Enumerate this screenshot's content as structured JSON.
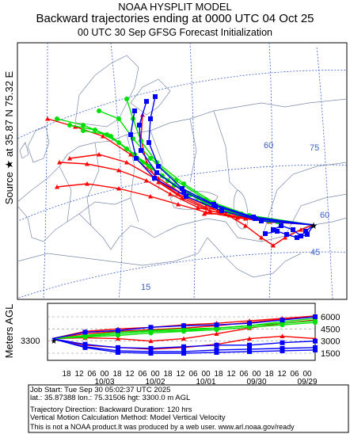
{
  "header": {
    "line1": "NOAA HYSPLIT MODEL",
    "line2": "Backward trajectories ending at 0000 UTC 04 Oct 25",
    "line3": "00 UTC 30 Sep    GFSG  Forecast Initialization"
  },
  "side_label": "Source ★  at   35.87 N   75.32 E",
  "map": {
    "source": {
      "lat": 35.87,
      "lon": 75.32
    },
    "grid_labels": [
      "60",
      "75",
      "60",
      "45",
      "15"
    ]
  },
  "vertical": {
    "axis_label": "Meters AGL",
    "source_height_label": "3300",
    "right_ticks": [
      "6000",
      "4500",
      "3000",
      "1500"
    ],
    "hour_ticks": [
      "18",
      "12",
      "06",
      "00",
      "18",
      "12",
      "06",
      "00",
      "18",
      "12",
      "06",
      "00",
      "18",
      "12",
      "06",
      "00",
      "18",
      "12",
      "06",
      "00"
    ],
    "date_ticks": [
      "10/03",
      "10/02",
      "10/01",
      "09/30",
      "09/29"
    ]
  },
  "info": {
    "line1": "Job Start: Tue Sep 30 05:02:37 UTC 2025",
    "line2": "lat.: 35.87388   lon.: 75.31506    hgt: 3300.0 m AGL",
    "line3": "Trajectory Direction: Backward      Duration: 120 hrs",
    "line4": "Vertical Motion Calculation Method: Model Vertical Velocity",
    "line5": "This is not a NOAA product.It was produced by a web user. www.arl.noaa.gov/ready"
  },
  "colors": {
    "red": "#ff0000",
    "green": "#00e000",
    "blue": "#0000ff",
    "map_line": "#7a8aa8",
    "grid": "#3a5fcd"
  }
}
